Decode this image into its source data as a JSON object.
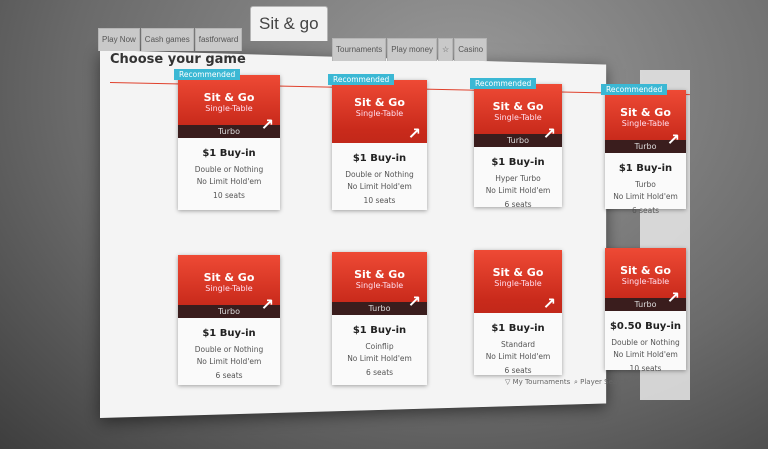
{
  "tabs": {
    "main": "Sit & go",
    "left": [
      "Play Now",
      "Cash games",
      "fastforward"
    ],
    "right": [
      "Tournaments",
      "Play money",
      "☆",
      "Casino"
    ]
  },
  "heading": "Choose your game",
  "cards": [
    {
      "recommended": "Recommended",
      "title": "Sit & Go",
      "subtitle": "Single-Table",
      "speed": "Turbo",
      "buyin": "$1 Buy-in",
      "type": "Double or Nothing",
      "game": "No Limit Hold'em",
      "seats": "10 seats"
    },
    {
      "recommended": "Recommended",
      "title": "Sit & Go",
      "subtitle": "Single-Table",
      "speed": "",
      "buyin": "$1 Buy-in",
      "type": "Double or Nothing",
      "game": "No Limit Hold'em",
      "seats": "10 seats"
    },
    {
      "recommended": "Recommended",
      "title": "Sit & Go",
      "subtitle": "Single-Table",
      "speed": "Turbo",
      "buyin": "$1 Buy-in",
      "type": "Hyper Turbo",
      "game": "No Limit Hold'em",
      "seats": "6 seats"
    },
    {
      "recommended": "Recommended",
      "title": "Sit & Go",
      "subtitle": "Single-Table",
      "speed": "Turbo",
      "buyin": "$1 Buy-in",
      "type": "Turbo",
      "game": "No Limit Hold'em",
      "seats": "6 seats"
    },
    {
      "title": "Sit & Go",
      "subtitle": "Single-Table",
      "speed": "Turbo",
      "buyin": "$1 Buy-in",
      "type": "Double or Nothing",
      "game": "No Limit Hold'em",
      "seats": "6 seats"
    },
    {
      "title": "Sit & Go",
      "subtitle": "Single-Table",
      "speed": "Turbo",
      "buyin": "$1 Buy-in",
      "type": "Coinflip",
      "game": "No Limit Hold'em",
      "seats": "6 seats"
    },
    {
      "title": "Sit & Go",
      "subtitle": "Single-Table",
      "speed": "",
      "buyin": "$1 Buy-in",
      "type": "Standard",
      "game": "No Limit Hold'em",
      "seats": "6 seats"
    },
    {
      "title": "Sit & Go",
      "subtitle": "Single-Table",
      "speed": "Turbo",
      "buyin": "$0.50 Buy-in",
      "type": "Double or Nothing",
      "game": "No Limit Hold'em",
      "seats": "10 seats"
    }
  ],
  "links": {
    "my_tournaments": "▽ My Tournaments",
    "player_search": "⌕ Player Search"
  },
  "colors": {
    "accent": "#e0412c",
    "recommended": "#3bb8d4"
  }
}
